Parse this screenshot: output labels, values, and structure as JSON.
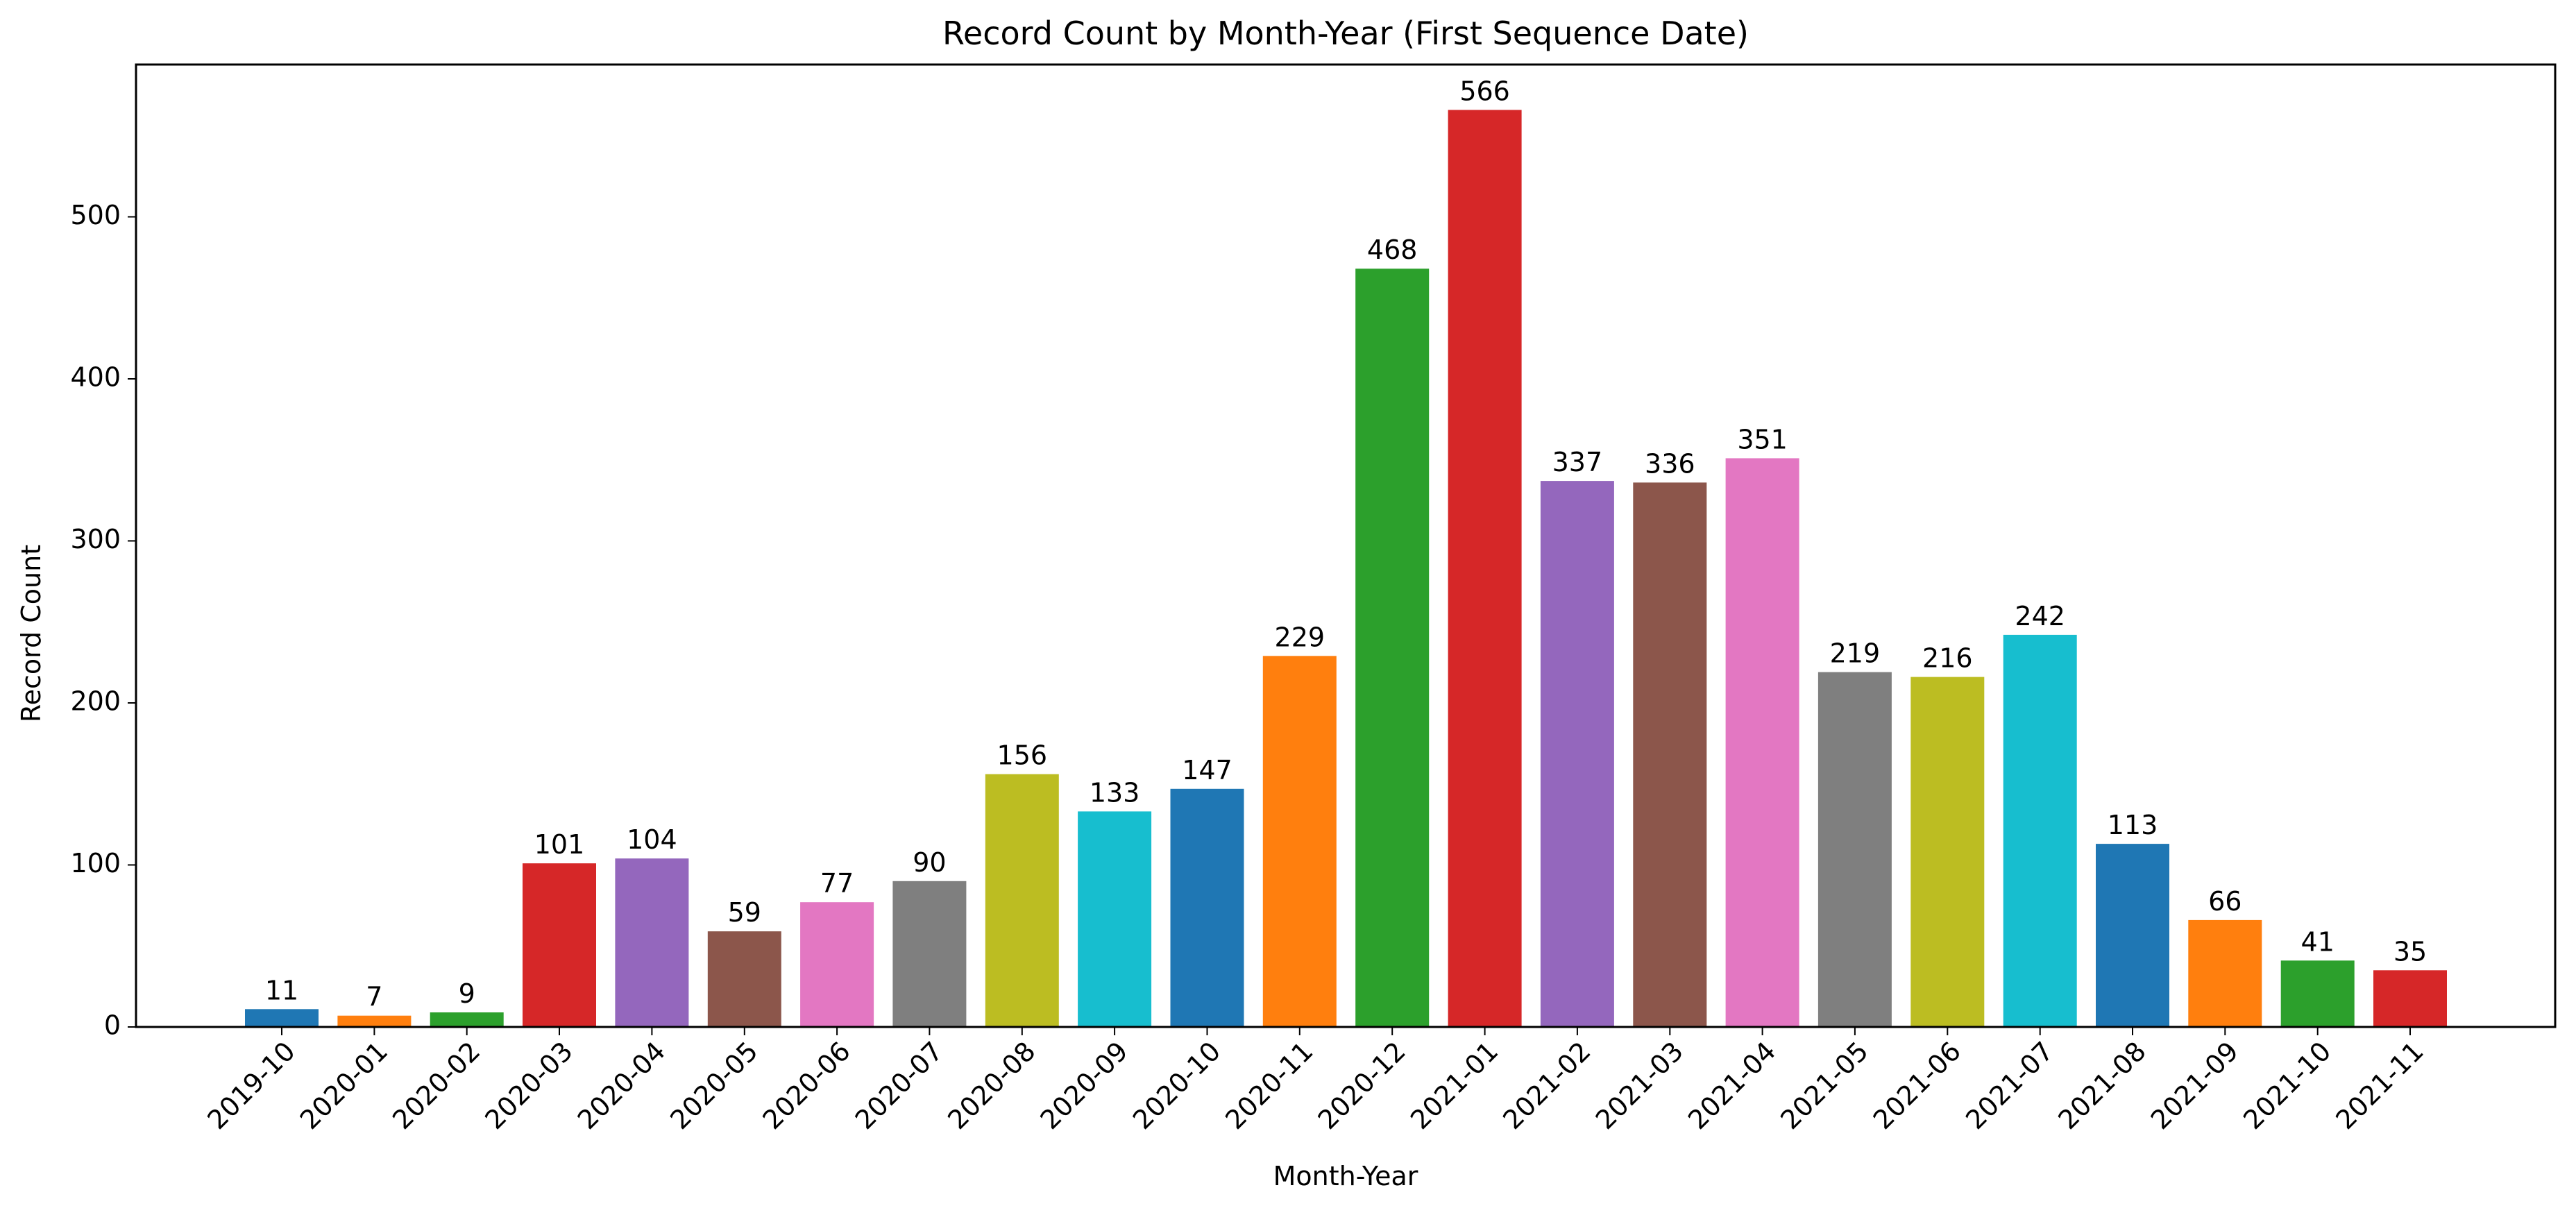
{
  "chart_data": {
    "type": "bar",
    "title": "Record Count by Month-Year (First Sequence Date)",
    "xlabel": "Month-Year",
    "ylabel": "Record Count",
    "categories": [
      "2019-10",
      "2020-01",
      "2020-02",
      "2020-03",
      "2020-04",
      "2020-05",
      "2020-06",
      "2020-07",
      "2020-08",
      "2020-09",
      "2020-10",
      "2020-11",
      "2020-12",
      "2021-01",
      "2021-02",
      "2021-03",
      "2021-04",
      "2021-05",
      "2021-06",
      "2021-07",
      "2021-08",
      "2021-09",
      "2021-10",
      "2021-11"
    ],
    "values": [
      11,
      7,
      9,
      101,
      104,
      59,
      77,
      90,
      156,
      133,
      147,
      229,
      468,
      566,
      337,
      336,
      351,
      219,
      216,
      242,
      113,
      66,
      41,
      35
    ],
    "ylim": [
      0,
      594
    ],
    "yticks": [
      0,
      100,
      200,
      300,
      400,
      500
    ],
    "grid": false,
    "legend": "none",
    "xtick_rotation_deg": 45,
    "bar_colors": [
      "#1f77b4",
      "#ff7f0e",
      "#2ca02c",
      "#d62728",
      "#9467bd",
      "#8c564b",
      "#e377c2",
      "#7f7f7f",
      "#bcbd22",
      "#17becf"
    ]
  }
}
